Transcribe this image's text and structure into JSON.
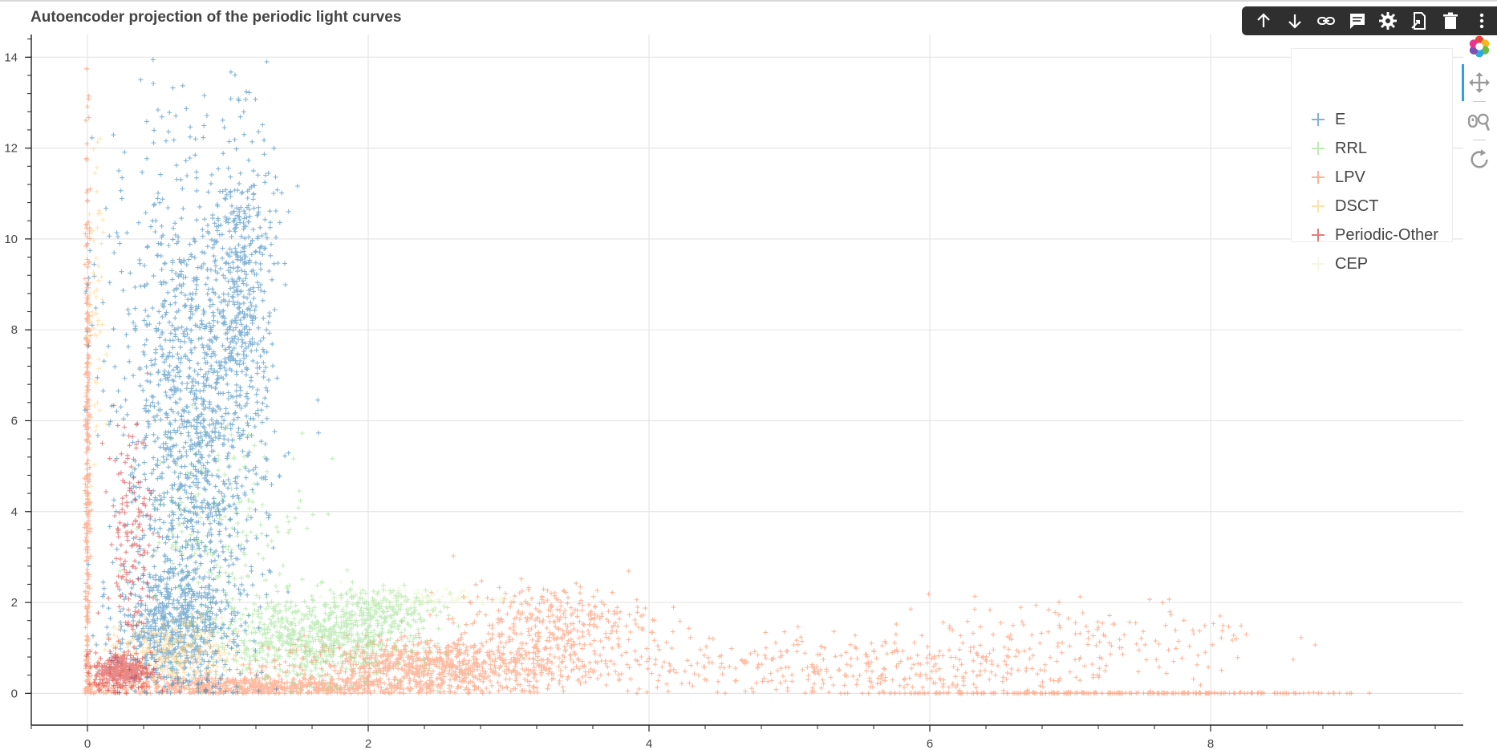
{
  "title": "Autoencoder projection of the periodic light curves",
  "legend": {
    "items": [
      {
        "label": "E",
        "color": "#1f77b4"
      },
      {
        "label": "RRL",
        "color": "#98df8a"
      },
      {
        "label": "LPV",
        "color": "#ff7f50"
      },
      {
        "label": "DSCT",
        "color": "#ffd27f"
      },
      {
        "label": "Periodic-Other",
        "color": "#d62728"
      },
      {
        "label": "CEP",
        "color": "#e9f5c9"
      }
    ]
  },
  "toolbar": {
    "icons": [
      "arrow-up-icon",
      "arrow-down-icon",
      "link-icon",
      "comment-icon",
      "gear-icon",
      "export-icon",
      "trash-icon",
      "more-icon"
    ]
  },
  "bokeh_tools": {
    "icons": [
      "bokeh-logo-icon",
      "pan-icon",
      "wheel-zoom-icon",
      "reset-icon"
    ]
  },
  "chart_data": {
    "type": "scatter",
    "title": "Autoencoder projection of the periodic light curves",
    "xlabel": "",
    "ylabel": "",
    "xlim": [
      -0.4,
      9.8
    ],
    "ylim": [
      -0.7,
      14.5
    ],
    "x_ticks": [
      "0",
      "2",
      "4",
      "6",
      "8"
    ],
    "y_ticks": [
      "0",
      "2",
      "4",
      "6",
      "8",
      "10",
      "12",
      "14"
    ],
    "grid": true,
    "legend_position": "top-right",
    "marker": "cross",
    "series": [
      {
        "name": "E",
        "color": "#1f77b4",
        "clusters": [
          {
            "cx": 0.75,
            "cy": 5.5,
            "sx": 0.25,
            "sy": 2.8,
            "n": 1400
          },
          {
            "cx": 1.1,
            "cy": 9.0,
            "sx": 0.12,
            "sy": 1.8,
            "n": 400
          },
          {
            "cx": 0.6,
            "cy": 1.5,
            "sx": 0.2,
            "sy": 0.6,
            "n": 500
          },
          {
            "cx": 0.3,
            "cy": 10.5,
            "sx": 0.2,
            "sy": 2.0,
            "n": 40
          }
        ]
      },
      {
        "name": "RRL",
        "color": "#98df8a",
        "clusters": [
          {
            "cx": 1.6,
            "cy": 1.2,
            "sx": 0.35,
            "sy": 0.45,
            "n": 700
          },
          {
            "cx": 1.0,
            "cy": 3.5,
            "sx": 0.3,
            "sy": 1.2,
            "n": 200
          },
          {
            "cx": 2.1,
            "cy": 1.8,
            "sx": 0.2,
            "sy": 0.3,
            "n": 200
          }
        ]
      },
      {
        "name": "LPV",
        "color": "#ff7f50",
        "clusters": [
          {
            "cx": 0.0,
            "cy": 5.0,
            "sx": 0.01,
            "sy": 3.5,
            "n": 300
          },
          {
            "cx": 2.5,
            "cy": 0.6,
            "sx": 0.6,
            "sy": 0.3,
            "n": 900
          },
          {
            "cx": 1.2,
            "cy": 0.15,
            "sx": 0.7,
            "sy": 0.12,
            "n": 700
          },
          {
            "cx": 3.3,
            "cy": 1.6,
            "sx": 0.35,
            "sy": 0.4,
            "n": 300
          },
          {
            "cx": 5.5,
            "cy": 0.6,
            "sx": 1.0,
            "sy": 0.35,
            "n": 400
          },
          {
            "cx": 7.2,
            "cy": 1.3,
            "sx": 0.6,
            "sy": 0.4,
            "n": 120
          },
          {
            "cx": 7.4,
            "cy": 0.0,
            "sx": 1.0,
            "sy": 0.01,
            "n": 250
          }
        ]
      },
      {
        "name": "DSCT",
        "color": "#ffd27f",
        "clusters": [
          {
            "cx": 0.6,
            "cy": 0.9,
            "sx": 0.25,
            "sy": 0.35,
            "n": 300
          },
          {
            "cx": 0.05,
            "cy": 8.0,
            "sx": 0.03,
            "sy": 2.0,
            "n": 60
          }
        ]
      },
      {
        "name": "Periodic-Other",
        "color": "#d62728",
        "clusters": [
          {
            "cx": 0.25,
            "cy": 0.5,
            "sx": 0.1,
            "sy": 0.2,
            "n": 350
          },
          {
            "cx": 0.3,
            "cy": 3.5,
            "sx": 0.08,
            "sy": 1.3,
            "n": 150
          }
        ]
      },
      {
        "name": "CEP",
        "color": "#e9f5c9",
        "clusters": [
          {
            "cx": 2.4,
            "cy": 2.1,
            "sx": 0.3,
            "sy": 0.1,
            "n": 100
          }
        ]
      }
    ]
  }
}
